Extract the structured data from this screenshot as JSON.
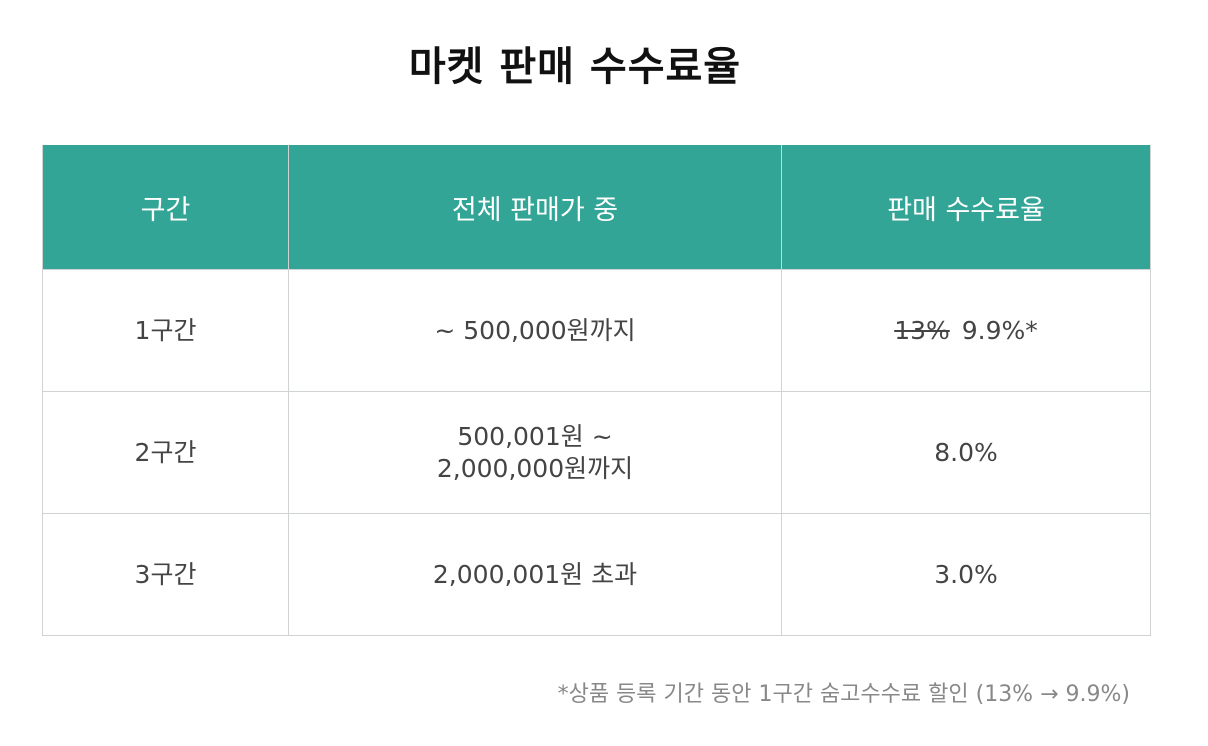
{
  "title": "마켓 판매 수수료율",
  "table": {
    "headers": [
      "구간",
      "전체 판매가 중",
      "판매 수수료율"
    ],
    "rows": [
      {
        "tier": "1구간",
        "range_line1": "~ 500,000원까지",
        "range_line2": "",
        "rate_original": "13%",
        "rate": "9.9%*"
      },
      {
        "tier": "2구간",
        "range_line1": "500,001원 ~",
        "range_line2": "2,000,000원까지",
        "rate_original": "",
        "rate": "8.0%"
      },
      {
        "tier": "3구간",
        "range_line1": "2,000,001원 초과",
        "range_line2": "",
        "rate_original": "",
        "rate": "3.0%"
      }
    ]
  },
  "footnote": "*상품 등록 기간 동안 1구간 숨고수수료 할인 (13% → 9.9%)",
  "colors": {
    "header_bg": "#33a596",
    "header_text": "#ffffff",
    "border": "#cfd3d2"
  }
}
